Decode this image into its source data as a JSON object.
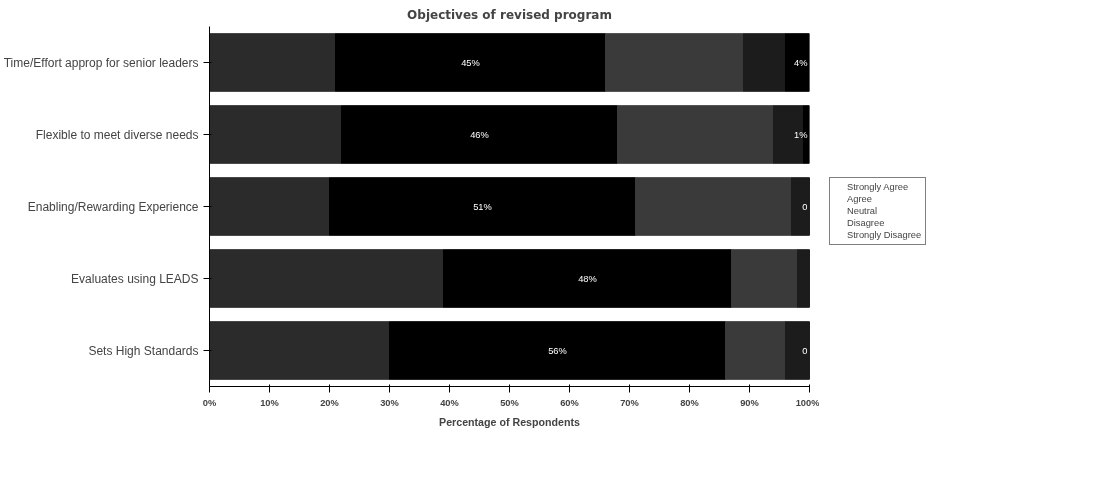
{
  "chart_data": {
    "type": "bar",
    "title": "Objectives of revised program",
    "xlabel": "Percentage of Respondents",
    "orientation": "horizontal",
    "stacked": true,
    "categories": [
      "Time/Effort approp for senior leaders",
      "Flexible to meet diverse needs",
      "Enabling/Rewarding Experience",
      "Evaluates using LEADS",
      "Sets High Standards"
    ],
    "series": [
      {
        "name": "Strongly Agree",
        "color": "#2b2b2b",
        "values": [
          21,
          22,
          20,
          39,
          30
        ]
      },
      {
        "name": "Agree",
        "color": "#000000",
        "values": [
          45,
          46,
          51,
          48,
          56
        ],
        "value_labels": [
          "45%",
          "46%",
          "51%",
          "48%",
          "56%"
        ]
      },
      {
        "name": "Neutral",
        "color": "#3a3a3a",
        "values": [
          23,
          26,
          26,
          11,
          10
        ]
      },
      {
        "name": "Disagree",
        "color": "#1c1c1c",
        "values": [
          7,
          5,
          3,
          2,
          4
        ]
      },
      {
        "name": "Strongly Disagree",
        "color": "#000000",
        "values": [
          4,
          1,
          0,
          0,
          0
        ],
        "value_labels": [
          "4%",
          "1%",
          "0",
          null,
          "0"
        ]
      }
    ],
    "xlim": [
      0,
      100
    ],
    "xticks": [
      {
        "value": 0,
        "label": "0%"
      },
      {
        "value": 10,
        "label": "10%"
      },
      {
        "value": 20,
        "label": "20%"
      },
      {
        "value": 30,
        "label": "30%"
      },
      {
        "value": 40,
        "label": "40%"
      },
      {
        "value": 50,
        "label": "50%"
      },
      {
        "value": 60,
        "label": "60%"
      },
      {
        "value": 70,
        "label": "70%"
      },
      {
        "value": 80,
        "label": "80%"
      },
      {
        "value": 90,
        "label": "90%"
      },
      {
        "value": 100,
        "label": "100%"
      }
    ],
    "grid": false,
    "legend": "right"
  }
}
